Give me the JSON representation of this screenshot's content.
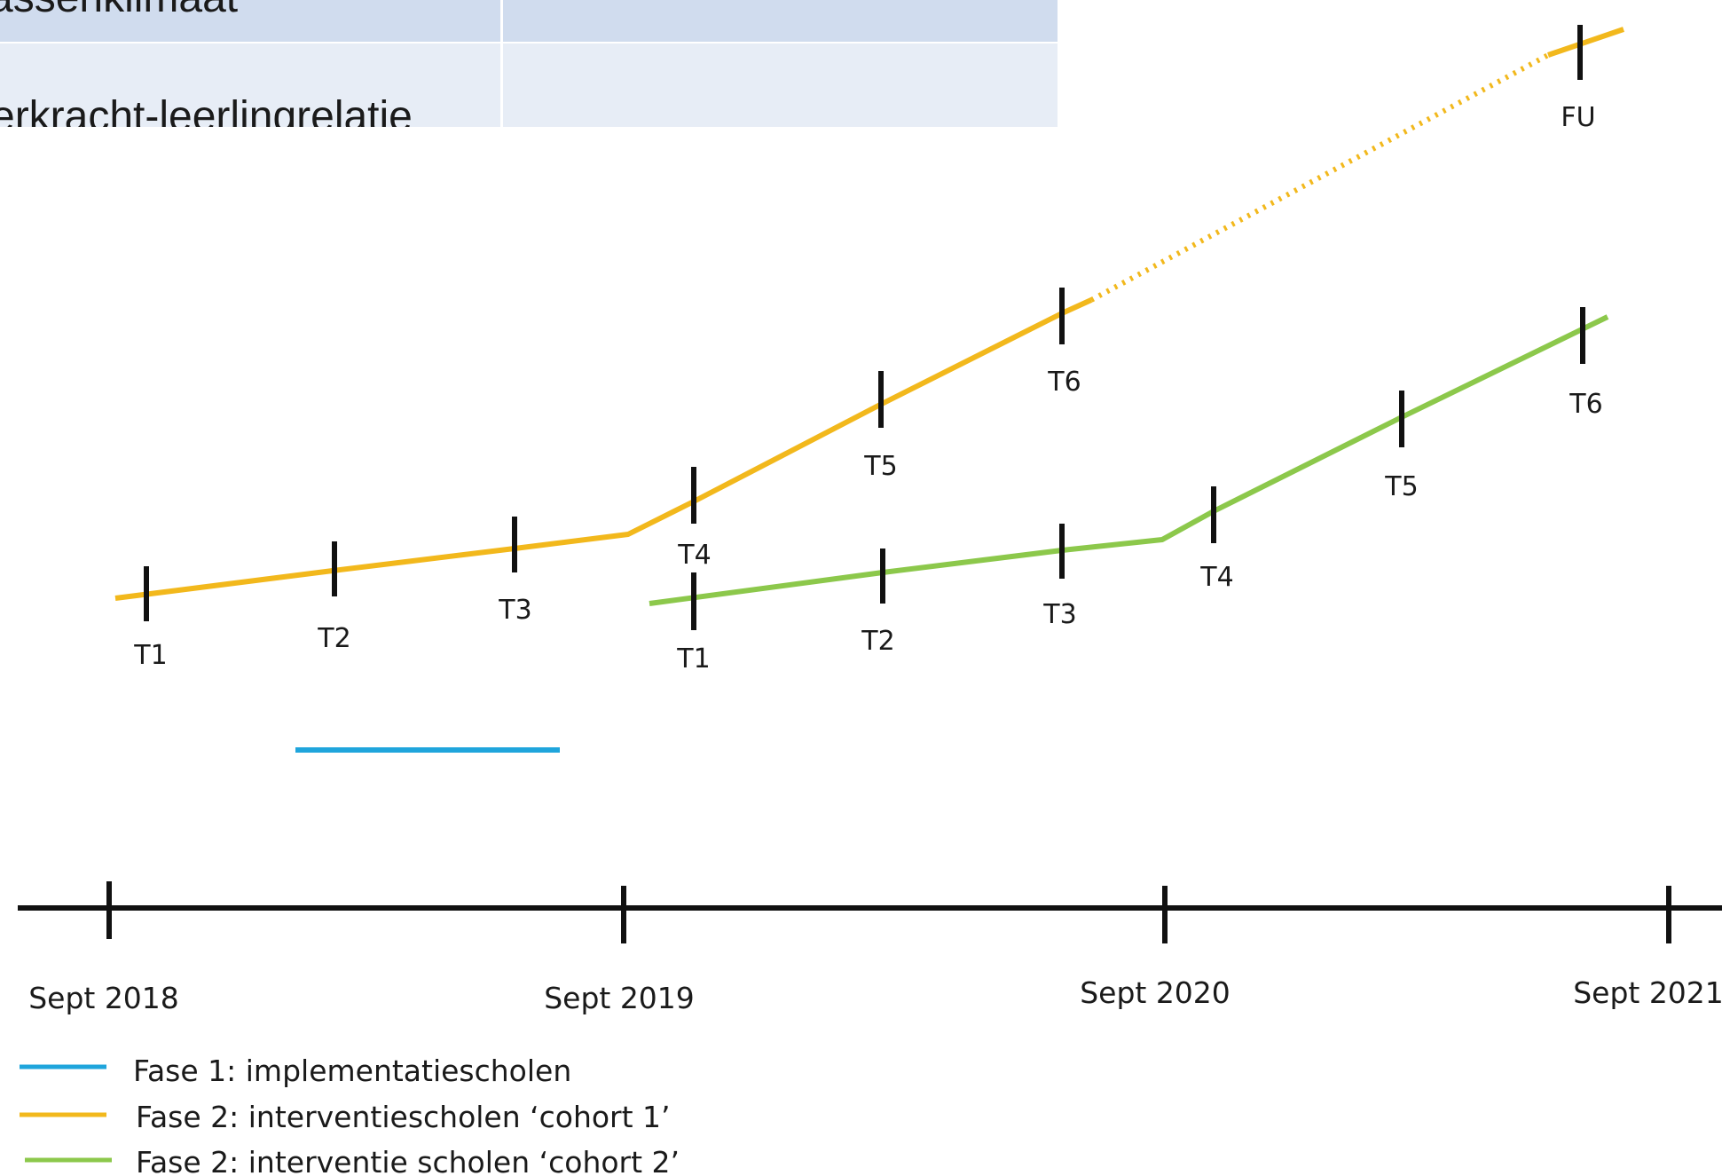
{
  "table": {
    "rows": [
      {
        "label": "assenklimaat",
        "value": ""
      },
      {
        "label": "erkracht-leerlingrelatie",
        "value": ""
      }
    ]
  },
  "colors": {
    "fase1": "#1fa5dc",
    "cohort1": "#f2b81c",
    "cohort2": "#8cc84b",
    "axis": "#111111",
    "tick": "#111111"
  },
  "timeline": {
    "labels": [
      "Sept 2018",
      "Sept 2019",
      "Sept 2020",
      "Sept 2021"
    ]
  },
  "cohort1": {
    "points": [
      "T1",
      "T2",
      "T3",
      "T4",
      "T5",
      "T6",
      "FU"
    ]
  },
  "cohort2": {
    "points": [
      "T1",
      "T2",
      "T3",
      "T4",
      "T5",
      "T6"
    ]
  },
  "legend": {
    "items": [
      {
        "label": "Fase 1: implementatiescholen",
        "color": "#1fa5dc"
      },
      {
        "label": "Fase 2: interventiescholen ‘cohort 1’",
        "color": "#f2b81c"
      },
      {
        "label": "Fase 2: interventie scholen ‘cohort 2’",
        "color": "#8cc84b"
      }
    ]
  }
}
